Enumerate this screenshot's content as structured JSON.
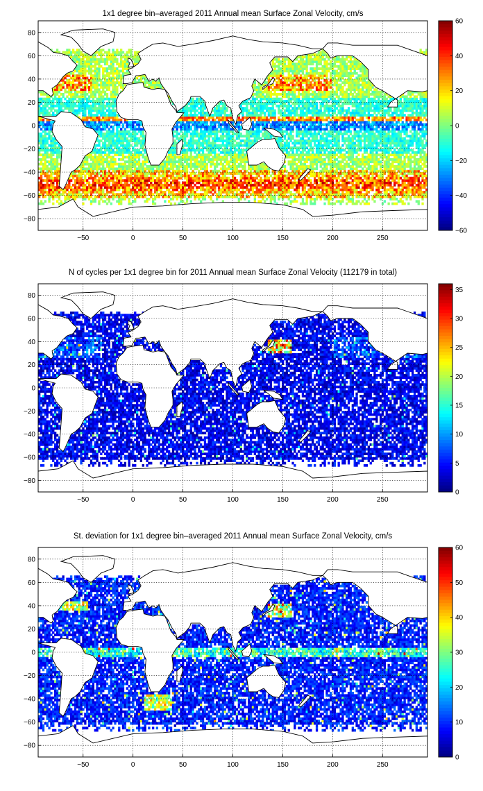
{
  "chart_data": [
    {
      "type": "heatmap",
      "title": "1x1 degree bin–averaged 2011 Annual mean Surface Zonal Velocity, cm/s",
      "xlabel": "",
      "ylabel": "",
      "xlim": [
        -95,
        295
      ],
      "ylim": [
        -90,
        90
      ],
      "x_ticks": [
        -50,
        0,
        50,
        100,
        150,
        200,
        250
      ],
      "y_ticks": [
        80,
        60,
        40,
        20,
        0,
        -20,
        -40,
        -60,
        -80
      ],
      "grid": true,
      "colormap": "jet",
      "colorbar": {
        "range": [
          -60,
          60
        ],
        "ticks": [
          60,
          40,
          20,
          0,
          -20,
          -40,
          -60
        ]
      }
    },
    {
      "type": "heatmap",
      "title": "N of cycles per 1x1 degree bin for 2011 Annual mean Surface Zonal Velocity (112179 in total)",
      "xlabel": "",
      "ylabel": "",
      "xlim": [
        -95,
        295
      ],
      "ylim": [
        -90,
        90
      ],
      "x_ticks": [
        -50,
        0,
        50,
        100,
        150,
        200,
        250
      ],
      "y_ticks": [
        80,
        60,
        40,
        20,
        0,
        -20,
        -40,
        -60,
        -80
      ],
      "grid": true,
      "colormap": "jet",
      "colorbar": {
        "range": [
          0,
          36
        ],
        "ticks": [
          35,
          30,
          25,
          20,
          15,
          10,
          5,
          0
        ]
      }
    },
    {
      "type": "heatmap",
      "title": "St. deviation for 1x1 degree bin–averaged 2011 Annual mean Surface Zonal Velocity, cm/s",
      "xlabel": "",
      "ylabel": "",
      "xlim": [
        -95,
        295
      ],
      "ylim": [
        -90,
        90
      ],
      "x_ticks": [
        -50,
        0,
        50,
        100,
        150,
        200,
        250
      ],
      "y_ticks": [
        80,
        60,
        40,
        20,
        0,
        -20,
        -40,
        -60,
        -80
      ],
      "grid": true,
      "colormap": "jet",
      "colorbar": {
        "range": [
          0,
          60
        ],
        "ticks": [
          60,
          50,
          40,
          30,
          20,
          10,
          0
        ]
      }
    }
  ],
  "colors": {
    "land": "#ffffff",
    "coast": "#000000",
    "grid": "#000000"
  }
}
